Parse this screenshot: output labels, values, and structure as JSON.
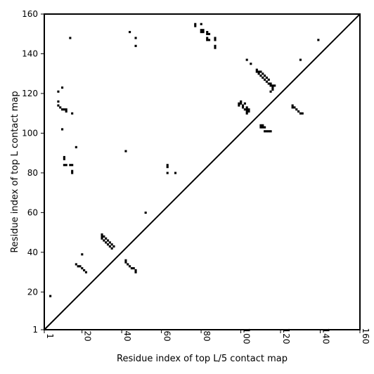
{
  "chart_data": {
    "type": "scatter",
    "title": "",
    "xlabel": "Residue index of top L/5 contact map",
    "ylabel": "Residue index of top L contact map",
    "xlim": [
      1,
      160
    ],
    "ylim": [
      1,
      160
    ],
    "x_ticks": [
      1,
      20,
      40,
      60,
      80,
      100,
      120,
      140,
      160
    ],
    "y_ticks": [
      1,
      20,
      40,
      60,
      80,
      100,
      120,
      140,
      160
    ],
    "grid": false,
    "diagonal_line": true,
    "marker": "square",
    "series": [
      {
        "points": [
          [
            4,
            18
          ],
          [
            8,
            121
          ],
          [
            8,
            116
          ],
          [
            8,
            114
          ],
          [
            9,
            113
          ],
          [
            10,
            112
          ],
          [
            10,
            123
          ],
          [
            10,
            102
          ],
          [
            11,
            112
          ],
          [
            11,
            88
          ],
          [
            11,
            87
          ],
          [
            11,
            84
          ],
          [
            12,
            84
          ],
          [
            12,
            111
          ],
          [
            12,
            112
          ],
          [
            14,
            148
          ],
          [
            14,
            84
          ],
          [
            15,
            84
          ],
          [
            15,
            81
          ],
          [
            15,
            80
          ],
          [
            15,
            110
          ],
          [
            17,
            93
          ],
          [
            17,
            34
          ],
          [
            18,
            33
          ],
          [
            19,
            33
          ],
          [
            20,
            32
          ],
          [
            21,
            31
          ],
          [
            22,
            30
          ],
          [
            20,
            39
          ],
          [
            30,
            49
          ],
          [
            30,
            48
          ],
          [
            30,
            47
          ],
          [
            31,
            48
          ],
          [
            31,
            46
          ],
          [
            32,
            47
          ],
          [
            32,
            45
          ],
          [
            33,
            46
          ],
          [
            33,
            44
          ],
          [
            34,
            45
          ],
          [
            34,
            43
          ],
          [
            35,
            44
          ],
          [
            35,
            42
          ],
          [
            36,
            43
          ],
          [
            42,
            91
          ],
          [
            42,
            36
          ],
          [
            42,
            35
          ],
          [
            43,
            34
          ],
          [
            44,
            33
          ],
          [
            44,
            151
          ],
          [
            45,
            32
          ],
          [
            46,
            32
          ],
          [
            47,
            31
          ],
          [
            47,
            30
          ],
          [
            47,
            144
          ],
          [
            47,
            148
          ],
          [
            52,
            60
          ],
          [
            63,
            84
          ],
          [
            63,
            83
          ],
          [
            63,
            80
          ],
          [
            67,
            80
          ],
          [
            77,
            155
          ],
          [
            77,
            154
          ],
          [
            80,
            155
          ],
          [
            80,
            152
          ],
          [
            80,
            151
          ],
          [
            81,
            152
          ],
          [
            81,
            151
          ],
          [
            83,
            151
          ],
          [
            83,
            150
          ],
          [
            84,
            150
          ],
          [
            83,
            148
          ],
          [
            83,
            147
          ],
          [
            84,
            147
          ],
          [
            87,
            148
          ],
          [
            87,
            147
          ],
          [
            87,
            144
          ],
          [
            87,
            143
          ],
          [
            99,
            115
          ],
          [
            99,
            114
          ],
          [
            100,
            116
          ],
          [
            100,
            115
          ],
          [
            101,
            114
          ],
          [
            101,
            113
          ],
          [
            102,
            112
          ],
          [
            102,
            115
          ],
          [
            103,
            113
          ],
          [
            103,
            112
          ],
          [
            103,
            111
          ],
          [
            103,
            110
          ],
          [
            104,
            112
          ],
          [
            104,
            111
          ],
          [
            103,
            137
          ],
          [
            105,
            135
          ],
          [
            108,
            132
          ],
          [
            108,
            131
          ],
          [
            109,
            131
          ],
          [
            109,
            130
          ],
          [
            110,
            131
          ],
          [
            110,
            129
          ],
          [
            111,
            130
          ],
          [
            111,
            128
          ],
          [
            112,
            129
          ],
          [
            112,
            127
          ],
          [
            113,
            128
          ],
          [
            113,
            126
          ],
          [
            114,
            127
          ],
          [
            114,
            125
          ],
          [
            115,
            125
          ],
          [
            115,
            124
          ],
          [
            115,
            121
          ],
          [
            116,
            124
          ],
          [
            116,
            123
          ],
          [
            117,
            124
          ],
          [
            116,
            122
          ],
          [
            110,
            104
          ],
          [
            110,
            103
          ],
          [
            111,
            104
          ],
          [
            111,
            103
          ],
          [
            112,
            103
          ],
          [
            112,
            101
          ],
          [
            113,
            101
          ],
          [
            114,
            101
          ],
          [
            115,
            101
          ],
          [
            126,
            114
          ],
          [
            126,
            113
          ],
          [
            127,
            113
          ],
          [
            128,
            112
          ],
          [
            130,
            137
          ],
          [
            129,
            111
          ],
          [
            130,
            110
          ],
          [
            131,
            110
          ],
          [
            139,
            147
          ]
        ]
      }
    ]
  }
}
